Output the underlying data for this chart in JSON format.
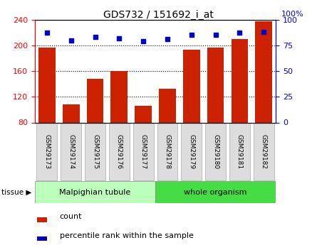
{
  "title": "GDS732 / 151692_i_at",
  "categories": [
    "GSM29173",
    "GSM29174",
    "GSM29175",
    "GSM29176",
    "GSM29177",
    "GSM29178",
    "GSM29179",
    "GSM29180",
    "GSM29181",
    "GSM29182"
  ],
  "bar_values": [
    197,
    108,
    148,
    160,
    106,
    133,
    193,
    196,
    210,
    237
  ],
  "dot_values": [
    87,
    80,
    83,
    82,
    79,
    81,
    85,
    85,
    87,
    88
  ],
  "bar_color": "#cc2200",
  "dot_color": "#0000cc",
  "ylim_left": [
    80,
    240
  ],
  "ylim_right": [
    0,
    100
  ],
  "yticks_left": [
    80,
    120,
    160,
    200,
    240
  ],
  "yticks_right": [
    0,
    25,
    50,
    75,
    100
  ],
  "tissue_labels": [
    "Malpighian tubule",
    "whole organism"
  ],
  "tissue_color_left": "#bbffbb",
  "tissue_color_right": "#44dd44",
  "tissue_split": 5,
  "n_categories": 10,
  "legend_count_label": "count",
  "legend_pct_label": "percentile rank within the sample",
  "tissue_row_label": "tissue ▶"
}
